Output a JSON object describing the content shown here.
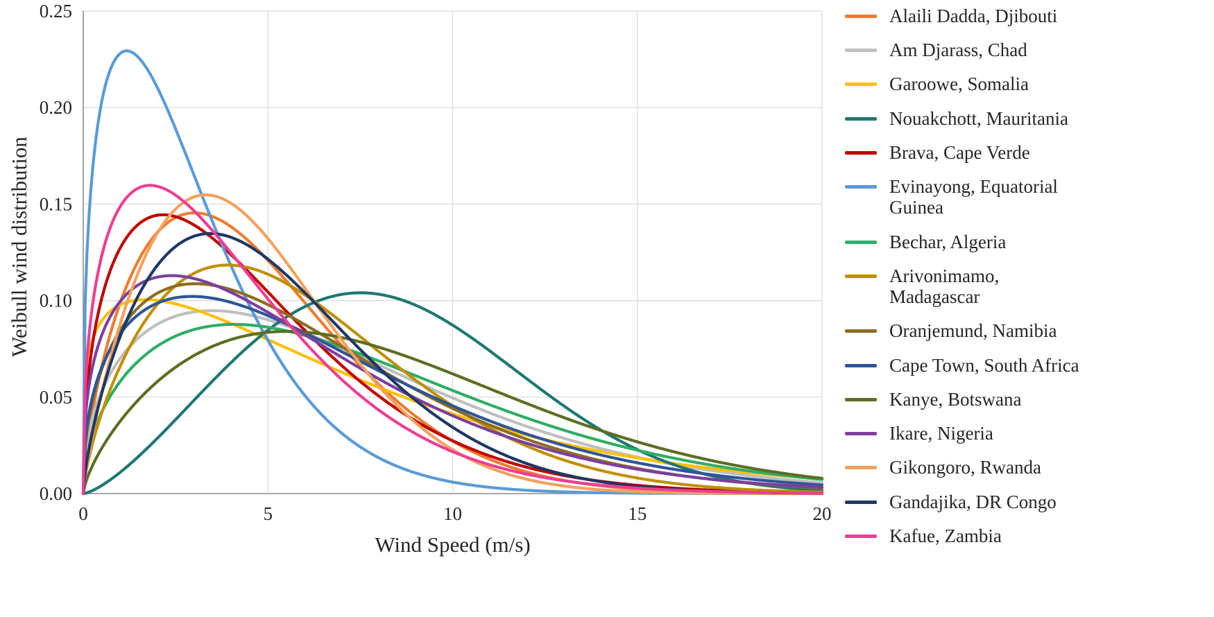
{
  "figure": {
    "background": "#FFFFFF",
    "plot_border_color": "#D9D9D9",
    "gridline_color": "#D9D9D9",
    "axis_line_color": "#8C8C8C",
    "text_color": "#262626"
  },
  "chart_data": {
    "type": "line",
    "title": "",
    "xlabel": "Wind Speed (m/s)",
    "ylabel": "Weibull wind distribution",
    "xlim": [
      0,
      20
    ],
    "ylim": [
      0,
      0.25
    ],
    "xticks": [
      "0",
      "5",
      "10",
      "15",
      "20"
    ],
    "yticks": [
      "0.00",
      "0.05",
      "0.10",
      "0.15",
      "0.20",
      "0.25"
    ],
    "grid": true,
    "legend_position": "right",
    "curve_model": "weibull_pdf: f(x) = (k/lam)*(x/lam)^(k-1)*exp(-(x/lam)^k)",
    "series": [
      {
        "id": "alaili-dadda",
        "name": "Alaili Dadda, Djibouti",
        "color": "#ED7D31",
        "weibull": {
          "k": 1.65,
          "lambda": 5.3
        },
        "peak": {
          "x": 3.0,
          "y": 0.145
        }
      },
      {
        "id": "am-djarass",
        "name": "Am Djarass, Chad",
        "color": "#BFBFBF",
        "weibull": {
          "k": 1.45,
          "lambda": 7.8
        },
        "peak": {
          "x": 3.5,
          "y": 0.095
        }
      },
      {
        "id": "garoowe",
        "name": "Garoowe, Somalia",
        "color": "#FFC000",
        "weibull": {
          "k": 1.2,
          "lambda": 7.5
        },
        "peak": {
          "x": 1.7,
          "y": 0.101
        }
      },
      {
        "id": "nouakchott",
        "name": "Nouakchott, Mauritania",
        "color": "#1E7872",
        "weibull": {
          "k": 2.4,
          "lambda": 9.4
        },
        "peak": {
          "x": 7.5,
          "y": 0.104
        }
      },
      {
        "id": "brava",
        "name": "Brava, Cape Verde",
        "color": "#C00000",
        "weibull": {
          "k": 1.42,
          "lambda": 5.1
        },
        "peak": {
          "x": 2.2,
          "y": 0.144
        }
      },
      {
        "id": "evinayong",
        "name": "Evinayong, Equatorial\nGuinea",
        "color": "#5B9BD5",
        "weibull": {
          "k": 1.35,
          "lambda": 3.2
        },
        "peak": {
          "x": 1.2,
          "y": 0.229
        }
      },
      {
        "id": "bechar",
        "name": "Bechar, Algeria",
        "color": "#2FAD66",
        "weibull": {
          "k": 1.5,
          "lambda": 8.5
        },
        "peak": {
          "x": 4.1,
          "y": 0.088
        }
      },
      {
        "id": "arivonimamo",
        "name": "Arivonimamo,\nMadagascar",
        "color": "#BF9000",
        "weibull": {
          "k": 1.7,
          "lambda": 6.6
        },
        "peak": {
          "x": 3.9,
          "y": 0.118
        }
      },
      {
        "id": "oranjemund",
        "name": "Oranjemund, Namibia",
        "color": "#8C6D1F",
        "weibull": {
          "k": 1.45,
          "lambda": 6.8
        },
        "peak": {
          "x": 3.0,
          "y": 0.109
        }
      },
      {
        "id": "cape-town",
        "name": "Cape Town, South Africa",
        "color": "#2F5597",
        "weibull": {
          "k": 1.4,
          "lambda": 7.2
        },
        "peak": {
          "x": 2.9,
          "y": 0.102
        }
      },
      {
        "id": "kanye",
        "name": "Kanye, Botswana",
        "color": "#5C6E23",
        "weibull": {
          "k": 1.7,
          "lambda": 9.3
        },
        "peak": {
          "x": 5.5,
          "y": 0.084
        }
      },
      {
        "id": "ikare",
        "name": "Ikare, Nigeria",
        "color": "#7B3FA0",
        "weibull": {
          "k": 1.35,
          "lambda": 6.5
        },
        "peak": {
          "x": 2.4,
          "y": 0.113
        }
      },
      {
        "id": "gikongoro",
        "name": "Gikongoro, Rwanda",
        "color": "#F2A25C",
        "weibull": {
          "k": 1.8,
          "lambda": 5.2
        },
        "peak": {
          "x": 3.3,
          "y": 0.155
        }
      },
      {
        "id": "gandajika",
        "name": "Gandajika, DR Congo",
        "color": "#1F3864",
        "weibull": {
          "k": 1.7,
          "lambda": 5.8
        },
        "peak": {
          "x": 3.4,
          "y": 0.135
        }
      },
      {
        "id": "kafue",
        "name": "Kafue, Zambia",
        "color": "#ED3F94",
        "weibull": {
          "k": 1.38,
          "lambda": 4.6
        },
        "peak": {
          "x": 1.8,
          "y": 0.16
        }
      }
    ]
  }
}
